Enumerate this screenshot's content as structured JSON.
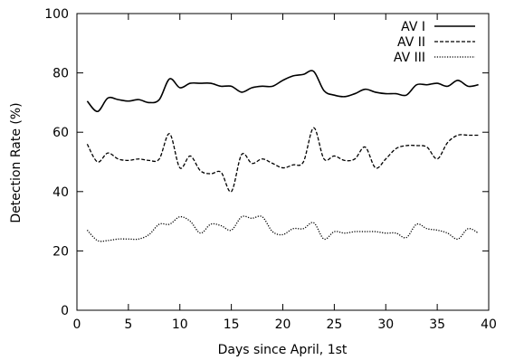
{
  "chart_data": {
    "type": "line",
    "title": "",
    "xlabel": "Days since April, 1st",
    "ylabel": "Detection Rate (%)",
    "xlim": [
      0,
      40
    ],
    "ylim": [
      0,
      100
    ],
    "xticks": [
      0,
      5,
      10,
      15,
      20,
      25,
      30,
      35,
      40
    ],
    "yticks": [
      0,
      20,
      40,
      60,
      80,
      100
    ],
    "grid": false,
    "legend_position": "top-right",
    "series": [
      {
        "name": "AV I",
        "dash": "solid",
        "x": [
          1,
          2,
          3,
          4,
          5,
          6,
          7,
          8,
          9,
          10,
          11,
          12,
          13,
          14,
          15,
          16,
          17,
          18,
          19,
          20,
          21,
          22,
          23,
          24,
          25,
          26,
          27,
          28,
          29,
          30,
          31,
          32,
          33,
          34,
          35,
          36,
          37,
          38,
          39
        ],
        "y": [
          70.5,
          67,
          71.5,
          71,
          70.5,
          71,
          70,
          71,
          78,
          75,
          76.5,
          76.5,
          76.5,
          75.5,
          75.5,
          73.5,
          75,
          75.5,
          75.5,
          77.5,
          79,
          79.5,
          80.5,
          74,
          72.5,
          72,
          73,
          74.5,
          73.5,
          73,
          73,
          72.5,
          76,
          76,
          76.5,
          75.5,
          77.5,
          75.5,
          76
        ]
      },
      {
        "name": "AV II",
        "dash": "dashed",
        "x": [
          1,
          2,
          3,
          4,
          5,
          6,
          7,
          8,
          9,
          10,
          11,
          12,
          13,
          14,
          15,
          16,
          17,
          18,
          19,
          20,
          21,
          22,
          23,
          24,
          25,
          26,
          27,
          28,
          29,
          30,
          31,
          32,
          33,
          34,
          35,
          36,
          37,
          38,
          39
        ],
        "y": [
          56,
          50,
          53,
          51,
          50.5,
          51,
          50.5,
          51,
          59.5,
          48,
          52,
          47,
          46,
          46.5,
          40,
          52.5,
          49.5,
          51,
          49.5,
          48,
          49,
          50,
          61.5,
          51,
          52,
          50.5,
          51,
          55,
          48,
          51,
          54.5,
          55.5,
          55.5,
          55,
          51,
          56.5,
          59,
          59,
          59
        ]
      },
      {
        "name": "AV III",
        "dash": "dotted",
        "x": [
          1,
          2,
          3,
          4,
          5,
          6,
          7,
          8,
          9,
          10,
          11,
          12,
          13,
          14,
          15,
          16,
          17,
          18,
          19,
          20,
          21,
          22,
          23,
          24,
          25,
          26,
          27,
          28,
          29,
          30,
          31,
          32,
          33,
          34,
          35,
          36,
          37,
          38,
          39
        ],
        "y": [
          27,
          23.5,
          23.5,
          24,
          24,
          24,
          25.5,
          29,
          29,
          31.5,
          30,
          26,
          29,
          28.5,
          27,
          31.5,
          31,
          31.5,
          26.5,
          25.5,
          27.5,
          27.5,
          29.5,
          24,
          26.5,
          26,
          26.5,
          26.5,
          26.5,
          26,
          26,
          24.5,
          29,
          27.5,
          27,
          26,
          24,
          27.5,
          26
        ]
      }
    ]
  }
}
